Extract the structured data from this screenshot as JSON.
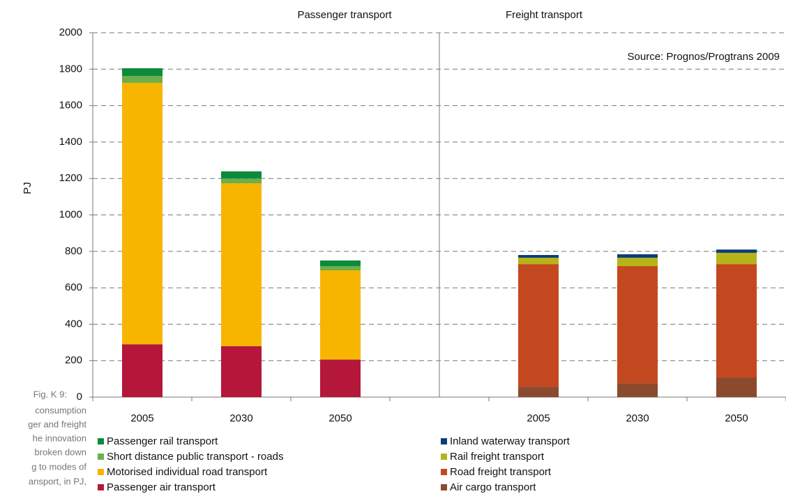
{
  "chart_data": {
    "type": "stacked-bar",
    "ylabel": "PJ",
    "group_titles": [
      "Passenger transport",
      "Freight transport"
    ],
    "source": "Source: Prognos/Progtrans 2009",
    "caption": [
      "Fig. K 9:",
      "consumption",
      "ger and freight",
      "he innovation",
      "broken down",
      "g to modes of",
      "ansport, in PJ,"
    ],
    "categories": [
      "2005",
      "2030",
      "2050",
      null,
      "2005",
      "2030",
      "2050"
    ],
    "series": [
      {
        "name": "Passenger rail transport",
        "color": "#0e8a3c",
        "values": [
          42,
          39,
          31,
          null,
          null,
          null,
          null
        ]
      },
      {
        "name": "Short distance public transport - roads",
        "color": "#6ab04c",
        "values": [
          38,
          26,
          23,
          null,
          null,
          null,
          null
        ]
      },
      {
        "name": "Motorised individual road transport",
        "color": "#f7b500",
        "values": [
          1435,
          894,
          490,
          null,
          null,
          null,
          null
        ]
      },
      {
        "name": "Passenger air transport",
        "color": "#b5173b",
        "values": [
          290,
          280,
          206,
          null,
          null,
          null,
          null
        ]
      },
      {
        "name": "Inland waterway transport",
        "color": "#0b3d7a",
        "values": [
          null,
          null,
          null,
          null,
          15,
          19,
          18
        ]
      },
      {
        "name": "Rail freight transport",
        "color": "#b5b418",
        "values": [
          null,
          null,
          null,
          null,
          35,
          46,
          62
        ]
      },
      {
        "name": "Road freight transport",
        "color": "#c4481f",
        "values": [
          null,
          null,
          null,
          null,
          673,
          643,
          623
        ]
      },
      {
        "name": "Air cargo transport",
        "color": "#8b4a2e",
        "values": [
          null,
          null,
          null,
          null,
          57,
          76,
          107
        ]
      }
    ],
    "ylim": [
      0,
      2000
    ],
    "yticks": [
      0,
      200,
      400,
      600,
      800,
      1000,
      1200,
      1400,
      1600,
      1800,
      2000
    ],
    "grid": true
  }
}
